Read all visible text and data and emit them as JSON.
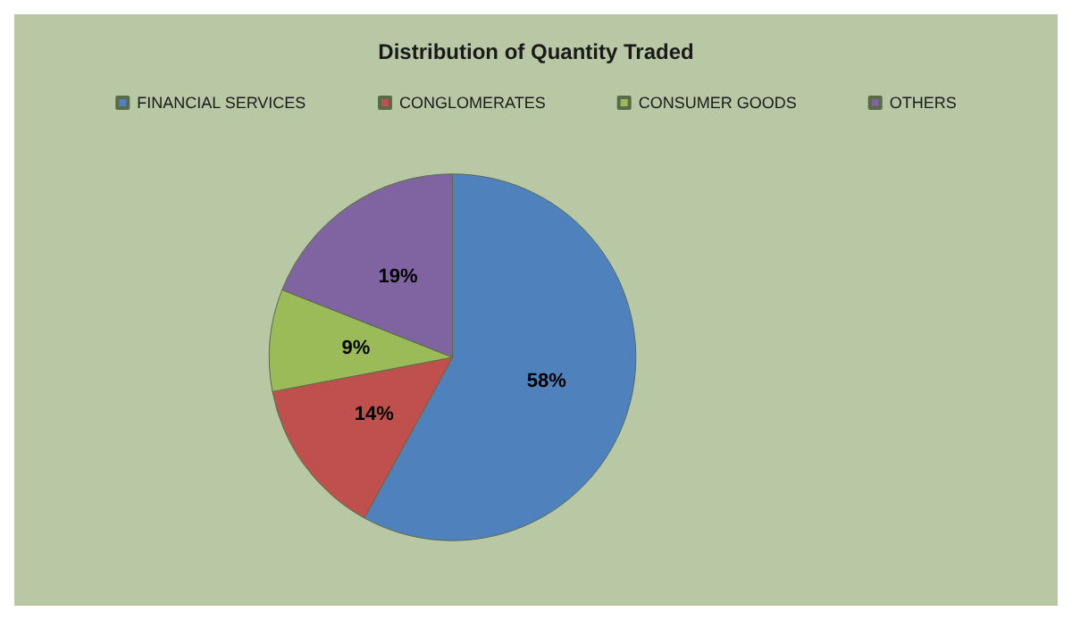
{
  "chart_data": {
    "type": "pie",
    "title": "Distribution of Quantity Traded",
    "categories": [
      "FINANCIAL SERVICES",
      "CONGLOMERATES",
      "CONSUMER GOODS",
      "OTHERS"
    ],
    "values": [
      58,
      14,
      9,
      19
    ],
    "colors": [
      "#4f81bd",
      "#c0504d",
      "#9bbb59",
      "#8064a2"
    ],
    "value_labels": [
      "58%",
      "14%",
      "9%",
      "19%"
    ],
    "legend": "top"
  }
}
